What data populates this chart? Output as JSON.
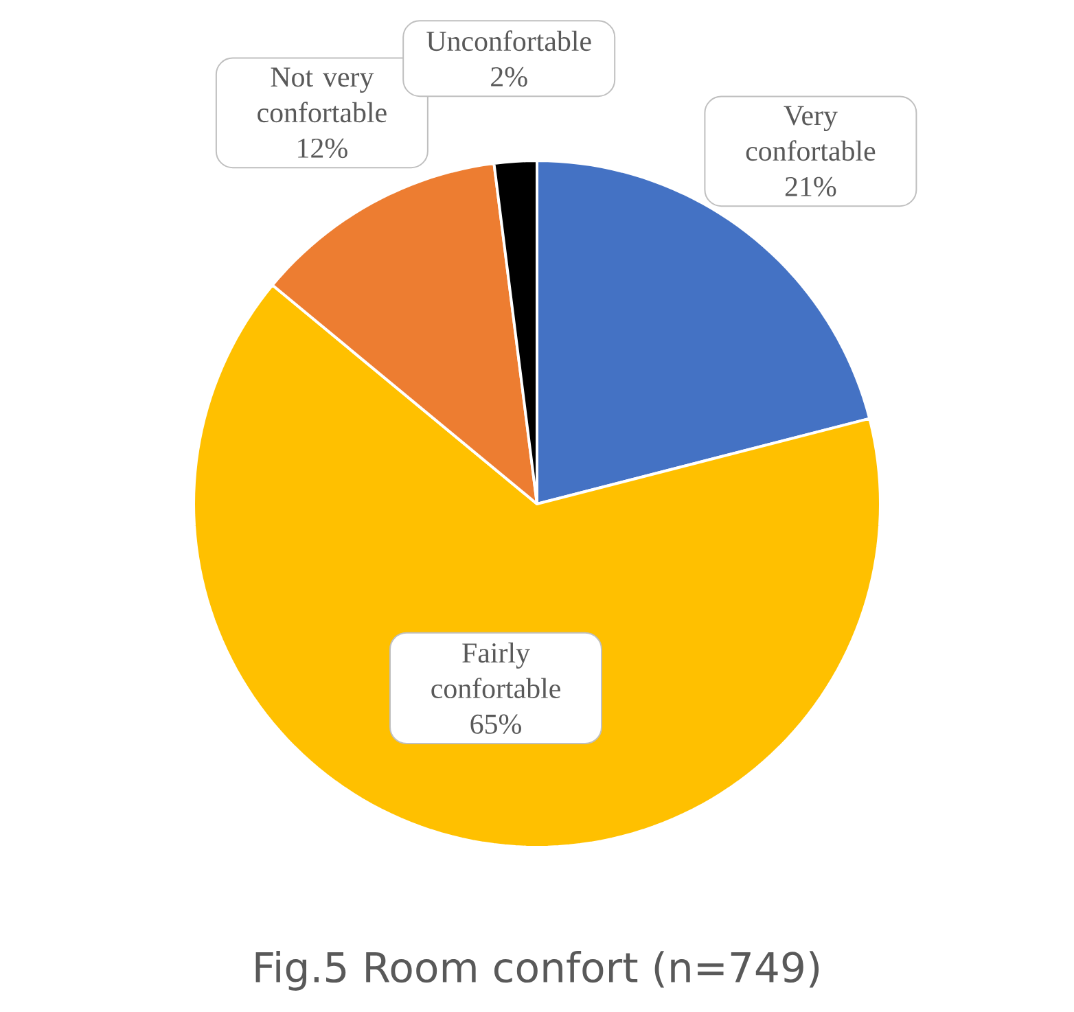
{
  "chart_data": {
    "type": "pie",
    "title": "Fig.5 Room confort (n=749)",
    "categories": [
      "Very confortable",
      "Fairly confortable",
      "Not very confortable",
      "Unconfortable"
    ],
    "values": [
      21,
      65,
      12,
      2
    ],
    "colors": [
      "#4472c4",
      "#ffc000",
      "#ed7d31",
      "#000000"
    ],
    "value_labels": [
      "21%",
      "65%",
      "12%",
      "2%"
    ]
  }
}
